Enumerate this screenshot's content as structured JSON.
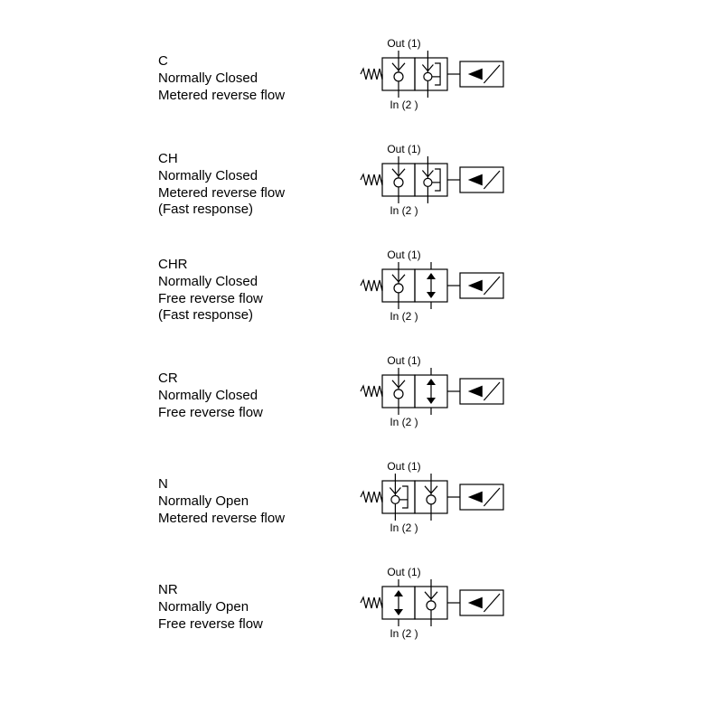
{
  "page": {
    "background_color": "#ffffff",
    "text_color": "#000000",
    "font_family": "Arial",
    "label_fontsize": 15,
    "symbol_fontsize": 12,
    "stroke": "#000000",
    "stroke_width": 1.2
  },
  "port_labels": {
    "out": "Out (1)",
    "in": "In (2 )"
  },
  "rows": [
    {
      "code": "C",
      "lines": [
        "Normally Closed",
        "Metered reverse flow"
      ],
      "left_block": "seat_up",
      "right_block": "check_bracket",
      "solenoid": "left"
    },
    {
      "code": "CH",
      "lines": [
        "Normally Closed",
        "Metered reverse flow",
        "(Fast response)"
      ],
      "left_block": "seat_up",
      "right_block": "check_bracket",
      "solenoid": "left"
    },
    {
      "code": "CHR",
      "lines": [
        "Normally Closed",
        "Free reverse flow",
        "(Fast response)"
      ],
      "left_block": "seat_up",
      "right_block": "biarrow",
      "solenoid": "left"
    },
    {
      "code": "CR",
      "lines": [
        "Normally Closed",
        "Free reverse flow"
      ],
      "left_block": "seat_up",
      "right_block": "biarrow",
      "solenoid": "left"
    },
    {
      "code": "N",
      "lines": [
        "Normally Open",
        "Metered reverse flow"
      ],
      "left_block": "check_bracket",
      "right_block": "seat_up",
      "solenoid": "left"
    },
    {
      "code": "NR",
      "lines": [
        "Normally Open",
        "Free reverse flow"
      ],
      "left_block": "biarrow",
      "right_block": "seat_up",
      "solenoid": "left"
    }
  ]
}
